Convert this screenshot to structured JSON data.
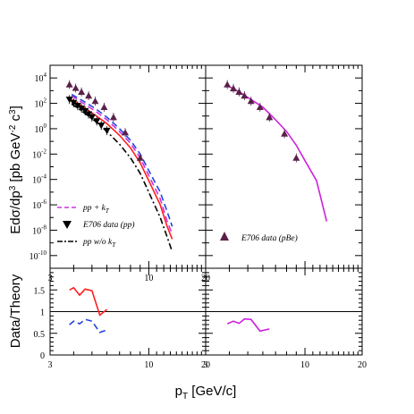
{
  "chart_data": [
    {
      "type": "line",
      "panel": "top-left",
      "xscale": "log",
      "yscale": "log",
      "xlim": [
        3,
        20
      ],
      "ylim": [
        1e-11,
        100000.0
      ],
      "x_ticks": [
        "3",
        "10",
        "20"
      ],
      "y_ticks": [
        "10^4",
        "10^2",
        "10^0",
        "10^-2",
        "10^-4",
        "10^-6",
        "10^-8",
        "10^-10"
      ],
      "ylabel": "Edσ/dp^3  [pb GeV^-2 c^3]",
      "legend_position": "bottom-left",
      "series": [
        {
          "name": "pp + k_T",
          "style": "dashed",
          "color": "#cc33dd",
          "x": [
            3.9,
            4.5,
            5.2,
            6.0,
            7.0,
            8.0,
            9.0,
            10.0,
            11.5,
            12.5,
            13.3
          ],
          "y": [
            400,
            100,
            25,
            5,
            0.6,
            0.07,
            0.005,
            0.0002,
            3e-06,
            5e-08,
            5e-09
          ]
        },
        {
          "name": "",
          "style": "solid",
          "color": "#ff2020",
          "x": [
            3.9,
            4.5,
            5.2,
            6.0,
            7.0,
            8.0,
            9.0,
            10.0,
            11.5,
            12.5,
            13.3
          ],
          "y": [
            200,
            50,
            12,
            2.5,
            0.3,
            0.03,
            0.002,
            8e-05,
            1e-06,
            2e-08,
            2e-09
          ]
        },
        {
          "name": "",
          "style": "dashed",
          "color": "#2244dd",
          "x": [
            3.9,
            4.5,
            5.2,
            6.0,
            7.0,
            8.0,
            9.0,
            10.0,
            11.5,
            12.5,
            13.3
          ],
          "y": [
            500,
            150,
            40,
            8,
            1,
            0.12,
            0.01,
            0.0005,
            1e-05,
            3e-07,
            2e-08
          ]
        },
        {
          "name": "pp w/o k_T",
          "style": "dashdot",
          "color": "#000000",
          "x": [
            3.9,
            4.5,
            5.2,
            6.0,
            7.0,
            8.0,
            9.0,
            10.0,
            11.5,
            12.5,
            13.3
          ],
          "y": [
            90,
            20,
            4,
            0.6,
            0.06,
            0.005,
            0.0003,
            1e-05,
            1e-07,
            3e-09,
            2e-10
          ]
        },
        {
          "name": "E706 data (pp)",
          "style": "markers-down-triangle",
          "color": "#000000",
          "x": [
            3.8,
            4.0,
            4.2,
            4.4,
            4.6,
            4.8,
            5.0,
            5.3,
            5.6,
            6.0
          ],
          "y": [
            200,
            110,
            65,
            40,
            25,
            14,
            8,
            4,
            1.8,
            0.7
          ]
        },
        {
          "name": "E706 data (pBe)",
          "style": "markers-up-triangle",
          "color": "#5a2048",
          "x": [
            3.8,
            4.1,
            4.4,
            4.8,
            5.2,
            5.8,
            6.5,
            7.5,
            9.0
          ],
          "y": [
            3000,
            1600,
            800,
            400,
            150,
            50,
            8,
            0.5,
            0.005
          ]
        }
      ]
    },
    {
      "type": "line",
      "panel": "top-right",
      "xscale": "log",
      "yscale": "log",
      "xlim": [
        3,
        20
      ],
      "ylim": [
        1e-11,
        100000.0
      ],
      "legend_position": "bottom-left",
      "series": [
        {
          "name": "",
          "style": "solid",
          "color": "#cc22dd",
          "x": [
            3.9,
            4.5,
            5.2,
            6.0,
            7.0,
            8.0,
            9.0,
            10.0,
            11.5,
            13.0
          ],
          "y": [
            2500,
            800,
            200,
            50,
            5,
            0.6,
            0.05,
            0.003,
            8e-05,
            5e-08
          ]
        },
        {
          "name": "E706 data (pBe)",
          "style": "markers-up-triangle",
          "color": "#5a2048",
          "x": [
            3.9,
            4.2,
            4.5,
            4.8,
            5.2,
            5.8,
            6.5,
            7.8,
            9.0
          ],
          "y": [
            3000,
            1500,
            800,
            400,
            150,
            50,
            8,
            0.4,
            0.005
          ]
        }
      ]
    },
    {
      "type": "line",
      "panel": "bottom-left",
      "xscale": "log",
      "xlim": [
        3,
        20
      ],
      "ylim": [
        0,
        2
      ],
      "x_ticks": [
        "3",
        "10",
        "20"
      ],
      "y_ticks": [
        "0",
        "0.5",
        "1",
        "1.5"
      ],
      "ylabel": "Data/Theory",
      "reference_line": 1,
      "series": [
        {
          "name": "",
          "style": "solid",
          "color": "#ff2020",
          "x": [
            3.8,
            4.0,
            4.3,
            4.6,
            5.0,
            5.5,
            6.0
          ],
          "y": [
            1.5,
            1.55,
            1.38,
            1.52,
            1.48,
            0.92,
            1.05
          ]
        },
        {
          "name": "",
          "style": "dashed",
          "color": "#2244dd",
          "x": [
            3.8,
            4.0,
            4.3,
            4.6,
            5.0,
            5.5,
            6.0
          ],
          "y": [
            0.7,
            0.78,
            0.72,
            0.82,
            0.78,
            0.52,
            0.58
          ]
        }
      ]
    },
    {
      "type": "line",
      "panel": "bottom-right",
      "xscale": "log",
      "xlim": [
        3,
        20
      ],
      "ylim": [
        0,
        2
      ],
      "x_ticks": [
        "3",
        "10",
        "20"
      ],
      "reference_line": 1,
      "series": [
        {
          "name": "",
          "style": "solid",
          "color": "#cc22dd",
          "x": [
            3.9,
            4.2,
            4.5,
            4.8,
            5.2,
            5.8,
            6.5
          ],
          "y": [
            0.72,
            0.78,
            0.73,
            0.83,
            0.82,
            0.55,
            0.6
          ]
        }
      ]
    }
  ],
  "xlabel": "p_T  [GeV/c]"
}
